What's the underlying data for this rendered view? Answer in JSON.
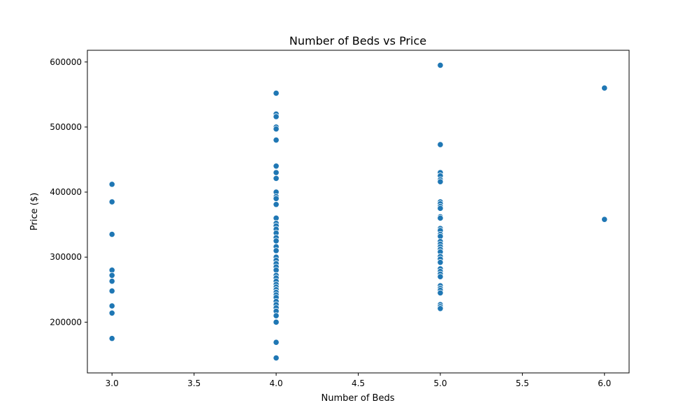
{
  "chart_data": {
    "type": "scatter",
    "title": "Number of Beds vs Price",
    "xlabel": "Number of Beds",
    "ylabel": "Price ($)",
    "xlim": [
      2.85,
      6.15
    ],
    "ylim": [
      122000,
      618000
    ],
    "x_ticks": [
      "3.0",
      "3.5",
      "4.0",
      "4.5",
      "5.0",
      "5.5",
      "6.0"
    ],
    "y_ticks": [
      "200000",
      "300000",
      "400000",
      "500000",
      "600000"
    ],
    "grid": false,
    "marker_color": "#1f77b4",
    "points": [
      {
        "x": 3,
        "y": 412000
      },
      {
        "x": 3,
        "y": 385000
      },
      {
        "x": 3,
        "y": 335000
      },
      {
        "x": 3,
        "y": 280000
      },
      {
        "x": 3,
        "y": 272000
      },
      {
        "x": 3,
        "y": 263000
      },
      {
        "x": 3,
        "y": 248000
      },
      {
        "x": 3,
        "y": 225000
      },
      {
        "x": 3,
        "y": 214000
      },
      {
        "x": 3,
        "y": 175000
      },
      {
        "x": 4,
        "y": 552000
      },
      {
        "x": 4,
        "y": 520000
      },
      {
        "x": 4,
        "y": 516000
      },
      {
        "x": 4,
        "y": 500000
      },
      {
        "x": 4,
        "y": 497000
      },
      {
        "x": 4,
        "y": 480000
      },
      {
        "x": 4,
        "y": 440000
      },
      {
        "x": 4,
        "y": 430000
      },
      {
        "x": 4,
        "y": 421000
      },
      {
        "x": 4,
        "y": 400000
      },
      {
        "x": 4,
        "y": 393000
      },
      {
        "x": 4,
        "y": 390000
      },
      {
        "x": 4,
        "y": 381000
      },
      {
        "x": 4,
        "y": 360000
      },
      {
        "x": 4,
        "y": 352000
      },
      {
        "x": 4,
        "y": 348000
      },
      {
        "x": 4,
        "y": 343000
      },
      {
        "x": 4,
        "y": 337000
      },
      {
        "x": 4,
        "y": 330000
      },
      {
        "x": 4,
        "y": 325000
      },
      {
        "x": 4,
        "y": 316000
      },
      {
        "x": 4,
        "y": 310000
      },
      {
        "x": 4,
        "y": 300000
      },
      {
        "x": 4,
        "y": 295000
      },
      {
        "x": 4,
        "y": 290000
      },
      {
        "x": 4,
        "y": 285000
      },
      {
        "x": 4,
        "y": 280000
      },
      {
        "x": 4,
        "y": 272000
      },
      {
        "x": 4,
        "y": 268000
      },
      {
        "x": 4,
        "y": 263000
      },
      {
        "x": 4,
        "y": 258000
      },
      {
        "x": 4,
        "y": 254000
      },
      {
        "x": 4,
        "y": 250000
      },
      {
        "x": 4,
        "y": 246000
      },
      {
        "x": 4,
        "y": 242000
      },
      {
        "x": 4,
        "y": 238000
      },
      {
        "x": 4,
        "y": 232000
      },
      {
        "x": 4,
        "y": 227000
      },
      {
        "x": 4,
        "y": 222000
      },
      {
        "x": 4,
        "y": 217000
      },
      {
        "x": 4,
        "y": 210000
      },
      {
        "x": 4,
        "y": 200000
      },
      {
        "x": 4,
        "y": 169000
      },
      {
        "x": 4,
        "y": 145000
      },
      {
        "x": 5,
        "y": 595000
      },
      {
        "x": 5,
        "y": 473000
      },
      {
        "x": 5,
        "y": 430000
      },
      {
        "x": 5,
        "y": 425000
      },
      {
        "x": 5,
        "y": 419000
      },
      {
        "x": 5,
        "y": 416000
      },
      {
        "x": 5,
        "y": 385000
      },
      {
        "x": 5,
        "y": 382000
      },
      {
        "x": 5,
        "y": 378000
      },
      {
        "x": 5,
        "y": 375000
      },
      {
        "x": 5,
        "y": 362000
      },
      {
        "x": 5,
        "y": 360000
      },
      {
        "x": 5,
        "y": 344000
      },
      {
        "x": 5,
        "y": 341000
      },
      {
        "x": 5,
        "y": 335000
      },
      {
        "x": 5,
        "y": 332000
      },
      {
        "x": 5,
        "y": 324000
      },
      {
        "x": 5,
        "y": 320000
      },
      {
        "x": 5,
        "y": 316000
      },
      {
        "x": 5,
        "y": 312000
      },
      {
        "x": 5,
        "y": 308000
      },
      {
        "x": 5,
        "y": 301000
      },
      {
        "x": 5,
        "y": 297000
      },
      {
        "x": 5,
        "y": 292000
      },
      {
        "x": 5,
        "y": 282000
      },
      {
        "x": 5,
        "y": 278000
      },
      {
        "x": 5,
        "y": 274000
      },
      {
        "x": 5,
        "y": 270000
      },
      {
        "x": 5,
        "y": 256000
      },
      {
        "x": 5,
        "y": 252000
      },
      {
        "x": 5,
        "y": 249000
      },
      {
        "x": 5,
        "y": 245000
      },
      {
        "x": 5,
        "y": 227000
      },
      {
        "x": 5,
        "y": 224000
      },
      {
        "x": 5,
        "y": 221000
      },
      {
        "x": 6,
        "y": 560000
      },
      {
        "x": 6,
        "y": 358000
      }
    ]
  }
}
